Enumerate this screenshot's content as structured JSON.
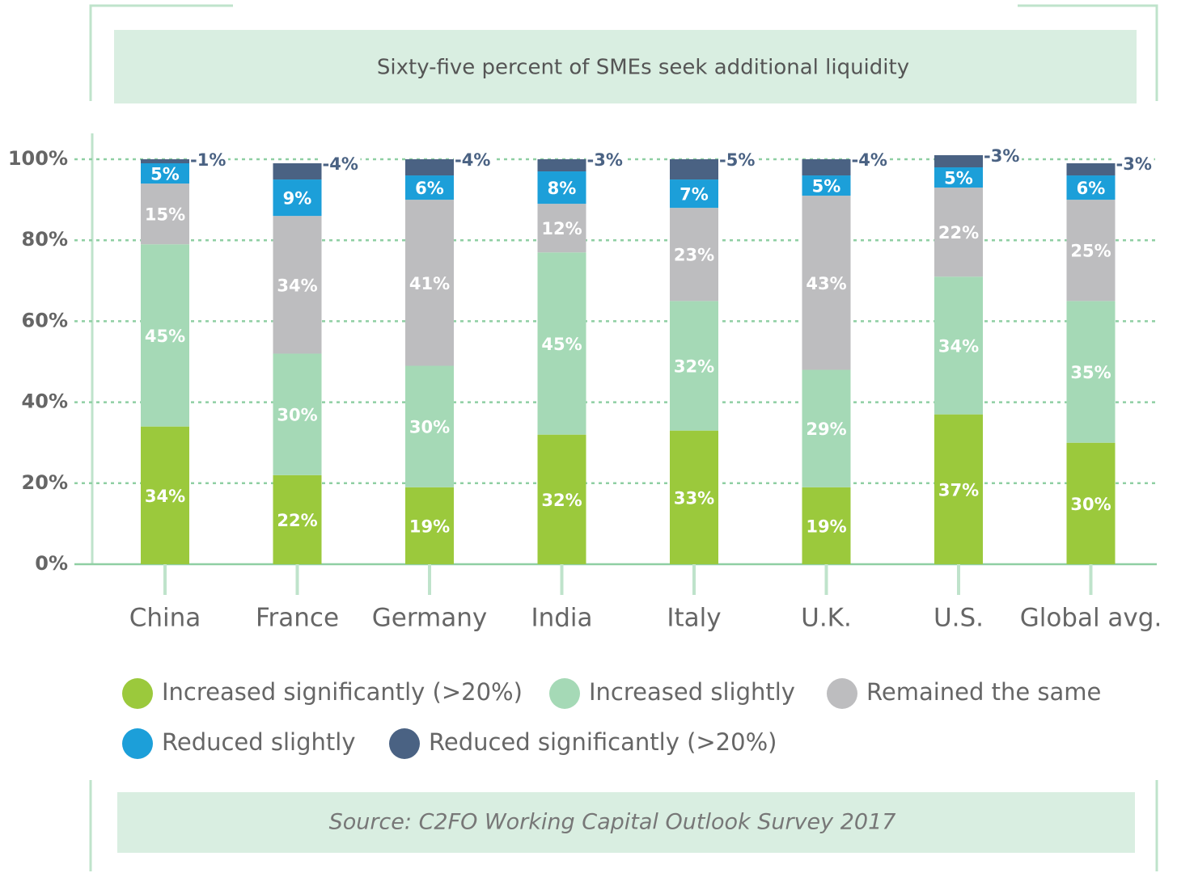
{
  "chart_data": {
    "type": "stacked_bar",
    "title": "Sixty-five percent of SMEs seek additional liquidity",
    "source": "Source: C2FO Working Capital Outlook Survey 2017",
    "categories": [
      "China",
      "France",
      "Germany",
      "India",
      "Italy",
      "U.K.",
      "U.S.",
      "Global avg."
    ],
    "series": [
      {
        "name": "Increased significantly (>20%)",
        "color": "#9bc93c",
        "values": [
          34,
          22,
          19,
          32,
          33,
          19,
          37,
          30
        ],
        "value_labels": [
          "34%",
          "22%",
          "19%",
          "32%",
          "33%",
          "19%",
          "37%",
          "30%"
        ]
      },
      {
        "name": "Increased slightly",
        "color": "#a5d9b6",
        "values": [
          45,
          30,
          30,
          45,
          32,
          29,
          34,
          35
        ],
        "value_labels": [
          "45%",
          "30%",
          "30%",
          "45%",
          "32%",
          "29%",
          "34%",
          "35%"
        ]
      },
      {
        "name": "Remained the same",
        "color": "#bdbdbf",
        "values": [
          15,
          34,
          41,
          12,
          23,
          43,
          22,
          25
        ],
        "value_labels": [
          "15%",
          "34%",
          "41%",
          "12%",
          "23%",
          "43%",
          "22%",
          "25%"
        ]
      },
      {
        "name": "Reduced slightly",
        "color": "#1c9fd9",
        "values": [
          5,
          9,
          6,
          8,
          7,
          5,
          5,
          6
        ],
        "value_labels": [
          "5%",
          "9%",
          "6%",
          "8%",
          "7%",
          "5%",
          "5%",
          "6%"
        ]
      },
      {
        "name": "Reduced significantly (>20%)",
        "color": "#4a6283",
        "values": [
          1,
          4,
          4,
          3,
          5,
          4,
          3,
          3
        ],
        "value_labels": [
          "-1%",
          "-4%",
          "-4%",
          "-3%",
          "-5%",
          "-4%",
          "-3%",
          "-3%"
        ]
      }
    ],
    "ylim": [
      0,
      100
    ],
    "yticks": [
      {
        "value": 0,
        "label": "0%"
      },
      {
        "value": 20,
        "label": "20%"
      },
      {
        "value": 40,
        "label": "40%"
      },
      {
        "value": 60,
        "label": "60%"
      },
      {
        "value": 80,
        "label": "80%"
      },
      {
        "value": 100,
        "label": "100%"
      }
    ],
    "grid": true
  }
}
